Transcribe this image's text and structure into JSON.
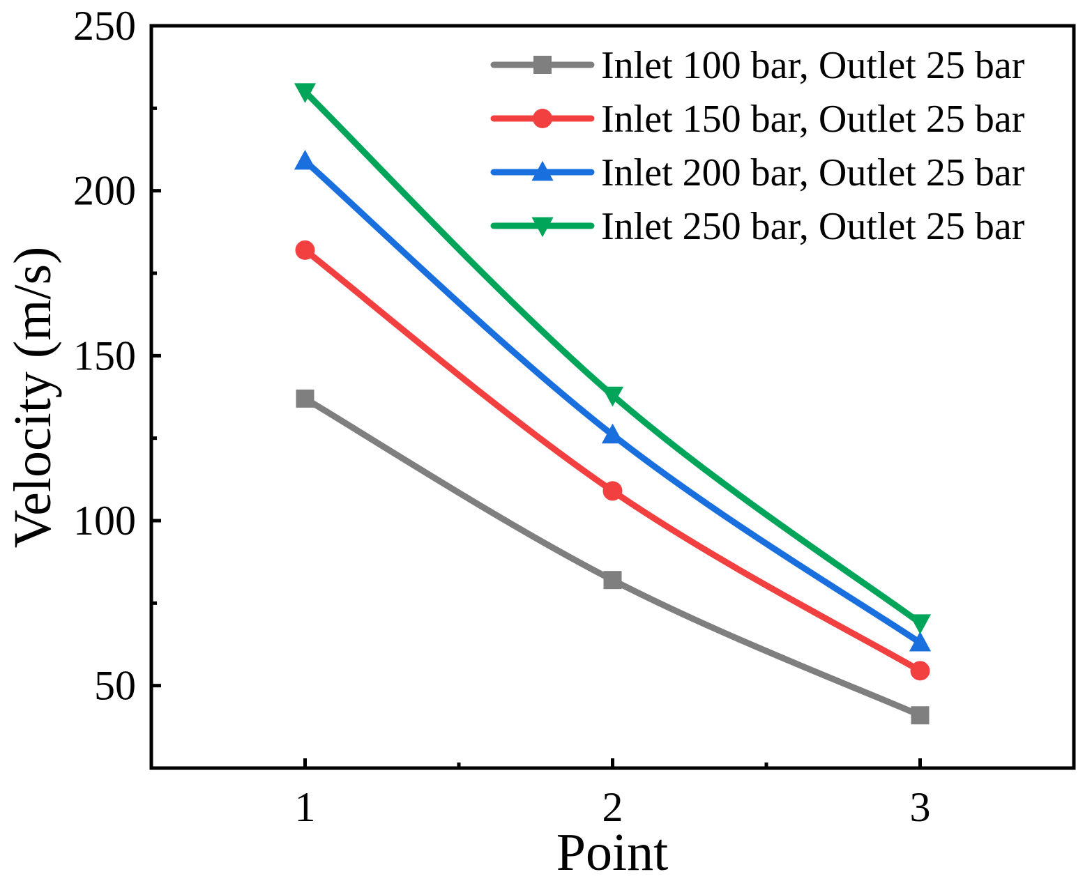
{
  "chart_data": {
    "type": "line",
    "title": "",
    "xlabel": "Point",
    "ylabel": "Velocity (m/s)",
    "categories": [
      "1",
      "2",
      "3"
    ],
    "x": [
      1,
      2,
      3
    ],
    "xlim": [
      0.5,
      3.5
    ],
    "ylim": [
      25,
      250
    ],
    "yticks": [
      50,
      100,
      150,
      200,
      250
    ],
    "grid": false,
    "legend_position": "top-right",
    "series": [
      {
        "name": "Inlet 100 bar, Outlet 25 bar",
        "color": "#7f7f7f",
        "marker": "square",
        "values": [
          137,
          82,
          41
        ]
      },
      {
        "name": "Inlet 150 bar, Outlet 25 bar",
        "color": "#f24040",
        "marker": "circle",
        "values": [
          182,
          109,
          54.5
        ]
      },
      {
        "name": "Inlet 200 bar, Outlet 25 bar",
        "color": "#1a6fdf",
        "marker": "triangle-up",
        "values": [
          209,
          126,
          63
        ]
      },
      {
        "name": "Inlet 250 bar, Outlet 25 bar",
        "color": "#00a55a",
        "marker": "triangle-down",
        "values": [
          230,
          138,
          69
        ]
      }
    ]
  }
}
